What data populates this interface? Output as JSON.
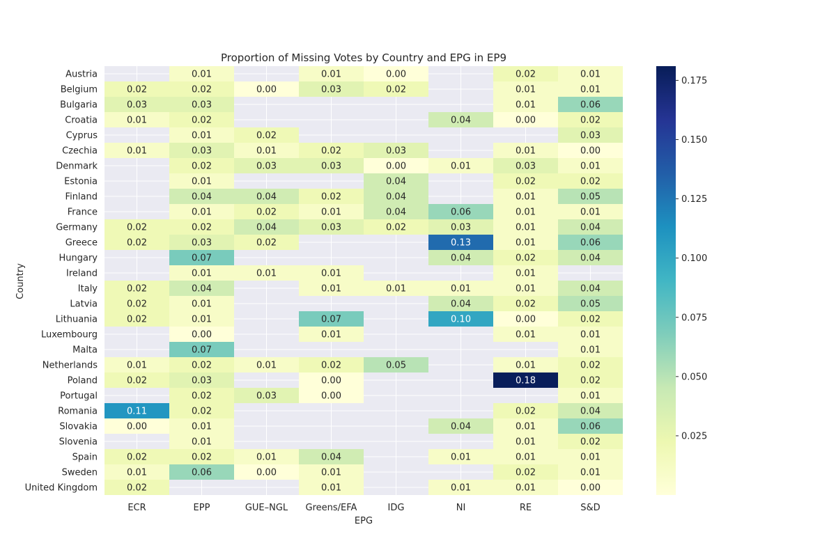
{
  "chart_data": {
    "type": "heatmap",
    "title": "Proportion of Missing Votes by Country and EPG in EP9",
    "xlabel": "EPG",
    "ylabel": "Country",
    "x_categories": [
      "ECR",
      "EPP",
      "GUE–NGL",
      "Greens/EFA",
      "IDG",
      "NI",
      "RE",
      "S&D"
    ],
    "y_categories": [
      "Austria",
      "Belgium",
      "Bulgaria",
      "Croatia",
      "Cyprus",
      "Czechia",
      "Denmark",
      "Estonia",
      "Finland",
      "France",
      "Germany",
      "Greece",
      "Hungary",
      "Ireland",
      "Italy",
      "Latvia",
      "Lithuania",
      "Luxembourg",
      "Malta",
      "Netherlands",
      "Poland",
      "Portugal",
      "Romania",
      "Slovakia",
      "Slovenia",
      "Spain",
      "Sweden",
      "United Kingdom"
    ],
    "values": [
      [
        null,
        0.01,
        null,
        0.01,
        0.0,
        null,
        0.02,
        0.01
      ],
      [
        0.02,
        0.02,
        0.0,
        0.03,
        0.02,
        null,
        0.01,
        0.01
      ],
      [
        0.03,
        0.03,
        null,
        null,
        null,
        null,
        0.01,
        0.06
      ],
      [
        0.01,
        0.02,
        null,
        null,
        null,
        0.04,
        0.0,
        0.02
      ],
      [
        null,
        0.01,
        0.02,
        null,
        null,
        null,
        null,
        0.03
      ],
      [
        0.01,
        0.03,
        0.01,
        0.02,
        0.03,
        null,
        0.01,
        0.0
      ],
      [
        null,
        0.02,
        0.03,
        0.03,
        0.0,
        0.01,
        0.03,
        0.01
      ],
      [
        null,
        0.01,
        null,
        null,
        0.04,
        null,
        0.02,
        0.02
      ],
      [
        null,
        0.04,
        0.04,
        0.02,
        0.04,
        null,
        0.01,
        0.05
      ],
      [
        null,
        0.01,
        0.02,
        0.01,
        0.04,
        0.06,
        0.01,
        0.01
      ],
      [
        0.02,
        0.02,
        0.04,
        0.03,
        0.02,
        0.03,
        0.01,
        0.04
      ],
      [
        0.02,
        0.03,
        0.02,
        null,
        null,
        0.13,
        0.01,
        0.06
      ],
      [
        null,
        0.07,
        null,
        null,
        null,
        0.04,
        0.02,
        0.04
      ],
      [
        null,
        0.01,
        0.01,
        0.01,
        null,
        null,
        0.01,
        null
      ],
      [
        0.02,
        0.04,
        null,
        0.01,
        0.01,
        0.01,
        0.01,
        0.04
      ],
      [
        0.02,
        0.01,
        null,
        null,
        null,
        0.04,
        0.02,
        0.05
      ],
      [
        0.02,
        0.01,
        null,
        0.07,
        null,
        0.1,
        0.0,
        0.02
      ],
      [
        null,
        0.0,
        null,
        0.01,
        null,
        null,
        0.01,
        0.01
      ],
      [
        null,
        0.07,
        null,
        null,
        null,
        null,
        null,
        0.01
      ],
      [
        0.01,
        0.02,
        0.01,
        0.02,
        0.05,
        null,
        0.01,
        0.02
      ],
      [
        0.02,
        0.03,
        null,
        0.0,
        null,
        null,
        0.18,
        0.02
      ],
      [
        null,
        0.02,
        0.03,
        0.0,
        null,
        null,
        null,
        0.01
      ],
      [
        0.11,
        0.02,
        null,
        null,
        null,
        null,
        0.02,
        0.04
      ],
      [
        0.0,
        0.01,
        null,
        null,
        null,
        0.04,
        0.01,
        0.06
      ],
      [
        null,
        0.01,
        null,
        null,
        null,
        null,
        0.01,
        0.02
      ],
      [
        0.02,
        0.02,
        0.01,
        0.04,
        null,
        0.01,
        0.01,
        0.01
      ],
      [
        0.01,
        0.06,
        0.0,
        0.01,
        null,
        null,
        0.02,
        0.01
      ],
      [
        0.02,
        null,
        null,
        0.01,
        null,
        0.01,
        0.01,
        0.0
      ]
    ],
    "colorbar": {
      "cmap": "YlGnBu",
      "vmin": 0.0,
      "vmax": 0.181,
      "ticks": [
        0.025,
        0.05,
        0.075,
        0.1,
        0.125,
        0.15,
        0.175
      ],
      "tick_labels": [
        "0.025",
        "0.050",
        "0.075",
        "0.100",
        "0.125",
        "0.150",
        "0.175"
      ]
    },
    "missing_color": "#eaeaf2",
    "grid": true,
    "annotation_format": "2 decimals"
  }
}
